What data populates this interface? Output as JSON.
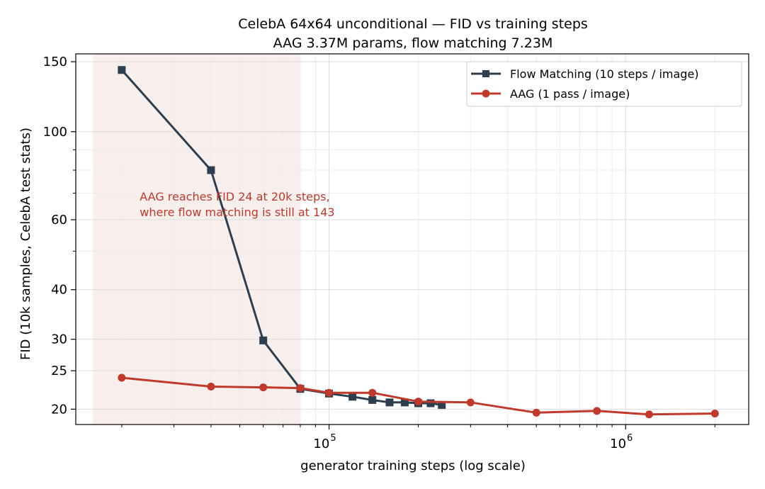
{
  "chart_data": {
    "type": "line",
    "title": "CelebA 64x64 unconditional — FID vs training steps",
    "subtitle": "AAG 3.37M params, flow matching 7.23M",
    "xlabel": "generator training steps (log scale)",
    "ylabel": "FID  (10k samples, CelebA test stats)",
    "x_scale": "log",
    "y_scale": "log",
    "xlim": [
      14000,
      2600000
    ],
    "ylim": [
      18.3,
      157
    ],
    "x_ticks": [
      {
        "value": 100000,
        "base": "10",
        "exp": "5"
      },
      {
        "value": 1000000,
        "base": "10",
        "exp": "6"
      }
    ],
    "y_ticks": [
      {
        "value": 150,
        "label": "150"
      },
      {
        "value": 100,
        "label": "100"
      },
      {
        "value": 60,
        "label": "60"
      },
      {
        "value": 40,
        "label": "40"
      },
      {
        "value": 30,
        "label": "30"
      },
      {
        "value": 25,
        "label": "25"
      },
      {
        "value": 20,
        "label": "20"
      }
    ],
    "grid": true,
    "legend_position": "top-right",
    "shaded_region": {
      "x": [
        16000,
        80000
      ],
      "color": "#f8efed"
    },
    "annotation": {
      "lines": [
        "AAG reaches FID 24 at 20k steps,",
        "where flow matching is still at 143"
      ],
      "x": 23000,
      "y": 67,
      "color": "#c0392b"
    },
    "series": [
      {
        "name": "Flow Matching  (10 steps / image)",
        "color": "#2c3e50",
        "marker": "square",
        "x": [
          20000,
          40000,
          60000,
          80000,
          100000,
          120000,
          140000,
          160000,
          180000,
          200000,
          220000,
          240000
        ],
        "y": [
          143,
          80,
          29.8,
          22.5,
          21.9,
          21.5,
          21.1,
          20.8,
          20.8,
          20.7,
          20.7,
          20.5
        ]
      },
      {
        "name": "AAG  (1 pass / image)",
        "color": "#c0392b",
        "marker": "circle",
        "x": [
          20000,
          40000,
          60000,
          80000,
          100000,
          140000,
          200000,
          300000,
          500000,
          800000,
          1200000,
          2000000
        ],
        "y": [
          24.0,
          22.8,
          22.7,
          22.6,
          22.0,
          22.0,
          20.9,
          20.8,
          19.6,
          19.8,
          19.4,
          19.5
        ]
      }
    ]
  }
}
